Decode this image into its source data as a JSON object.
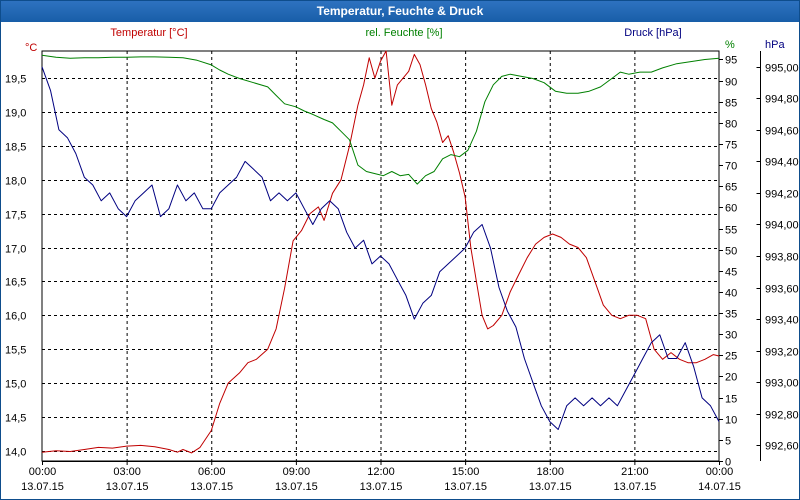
{
  "window": {
    "title": "Temperatur, Feuchte & Druck"
  },
  "chart_data": {
    "type": "line",
    "title": "Temperatur, Feuchte & Druck",
    "x_ticks": [
      {
        "time": "00:00",
        "date": "13.07.15"
      },
      {
        "time": "03:00",
        "date": "13.07.15"
      },
      {
        "time": "06:00",
        "date": "13.07.15"
      },
      {
        "time": "09:00",
        "date": "13.07.15"
      },
      {
        "time": "12:00",
        "date": "13.07.15"
      },
      {
        "time": "15:00",
        "date": "13.07.15"
      },
      {
        "time": "18:00",
        "date": "13.07.15"
      },
      {
        "time": "21:00",
        "date": "13.07.15"
      },
      {
        "time": "00:00",
        "date": "14.07.15"
      }
    ],
    "xlim_hours": [
      0,
      24
    ],
    "grid": true,
    "axes": {
      "temperature": {
        "unit": "°C",
        "range": [
          13.85,
          19.9
        ],
        "ticks": [
          "14,0",
          "14,5",
          "15,0",
          "15,5",
          "16,0",
          "16,5",
          "17,0",
          "17,5",
          "18,0",
          "18,5",
          "19,0",
          "19,5"
        ],
        "tick_values": [
          14,
          14.5,
          15,
          15.5,
          16,
          16.5,
          17,
          17.5,
          18,
          18.5,
          19,
          19.5
        ]
      },
      "humidity": {
        "unit": "%",
        "range": [
          0,
          97
        ],
        "ticks": [
          "0",
          "5",
          "10",
          "15",
          "20",
          "25",
          "30",
          "35",
          "40",
          "45",
          "50",
          "55",
          "60",
          "65",
          "70",
          "75",
          "80",
          "85",
          "90",
          "95"
        ],
        "tick_values": [
          0,
          5,
          10,
          15,
          20,
          25,
          30,
          35,
          40,
          45,
          50,
          55,
          60,
          65,
          70,
          75,
          80,
          85,
          90,
          95
        ]
      },
      "pressure": {
        "unit": "hPa",
        "range": [
          992.5,
          995.1
        ],
        "ticks": [
          "992,60",
          "992,80",
          "993,00",
          "993,20",
          "993,40",
          "993,60",
          "993,80",
          "994,00",
          "994,20",
          "994,40",
          "994,60",
          "994,80",
          "995,00"
        ],
        "tick_values": [
          992.6,
          992.8,
          993.0,
          993.2,
          993.4,
          993.6,
          993.8,
          994.0,
          994.2,
          994.4,
          994.6,
          994.8,
          995.0
        ]
      }
    },
    "legend": [
      "Temperatur [°C]",
      "rel. Feuchte [%]",
      "Druck [hPa]"
    ],
    "series": [
      {
        "name": "Temperatur [°C]",
        "axis": "temperature",
        "color": "#c00000",
        "points": [
          [
            0,
            13.98
          ],
          [
            0.5,
            14.0
          ],
          [
            1,
            13.99
          ],
          [
            1.5,
            14.02
          ],
          [
            2,
            14.05
          ],
          [
            2.5,
            14.04
          ],
          [
            3,
            14.07
          ],
          [
            3.5,
            14.08
          ],
          [
            4,
            14.06
          ],
          [
            4.5,
            14.02
          ],
          [
            4.8,
            13.98
          ],
          [
            5,
            14.02
          ],
          [
            5.3,
            13.97
          ],
          [
            5.6,
            14.05
          ],
          [
            6,
            14.3
          ],
          [
            6.3,
            14.7
          ],
          [
            6.6,
            15.0
          ],
          [
            7,
            15.15
          ],
          [
            7.3,
            15.3
          ],
          [
            7.6,
            15.35
          ],
          [
            8,
            15.5
          ],
          [
            8.3,
            15.8
          ],
          [
            8.6,
            16.4
          ],
          [
            8.9,
            17.1
          ],
          [
            9.2,
            17.25
          ],
          [
            9.5,
            17.5
          ],
          [
            9.8,
            17.6
          ],
          [
            10,
            17.4
          ],
          [
            10.3,
            17.8
          ],
          [
            10.6,
            18.0
          ],
          [
            10.9,
            18.5
          ],
          [
            11.2,
            19.1
          ],
          [
            11.4,
            19.4
          ],
          [
            11.6,
            19.8
          ],
          [
            11.8,
            19.5
          ],
          [
            12.0,
            19.75
          ],
          [
            12.2,
            19.9
          ],
          [
            12.4,
            19.1
          ],
          [
            12.6,
            19.4
          ],
          [
            12.8,
            19.5
          ],
          [
            13.0,
            19.6
          ],
          [
            13.2,
            19.85
          ],
          [
            13.4,
            19.7
          ],
          [
            13.6,
            19.4
          ],
          [
            13.8,
            19.05
          ],
          [
            14.0,
            18.85
          ],
          [
            14.2,
            18.55
          ],
          [
            14.4,
            18.65
          ],
          [
            14.6,
            18.4
          ],
          [
            14.8,
            18.1
          ],
          [
            15.0,
            17.75
          ],
          [
            15.2,
            17.0
          ],
          [
            15.4,
            16.5
          ],
          [
            15.6,
            16.0
          ],
          [
            15.8,
            15.8
          ],
          [
            16.0,
            15.85
          ],
          [
            16.3,
            16.0
          ],
          [
            16.6,
            16.35
          ],
          [
            16.9,
            16.6
          ],
          [
            17.2,
            16.85
          ],
          [
            17.5,
            17.05
          ],
          [
            17.8,
            17.15
          ],
          [
            18.1,
            17.2
          ],
          [
            18.4,
            17.15
          ],
          [
            18.7,
            17.05
          ],
          [
            19.0,
            17.0
          ],
          [
            19.3,
            16.85
          ],
          [
            19.6,
            16.5
          ],
          [
            19.9,
            16.15
          ],
          [
            20.2,
            16.0
          ],
          [
            20.5,
            15.95
          ],
          [
            20.8,
            16.0
          ],
          [
            21.1,
            16.0
          ],
          [
            21.4,
            15.95
          ],
          [
            21.7,
            15.5
          ],
          [
            22.0,
            15.35
          ],
          [
            22.3,
            15.45
          ],
          [
            22.6,
            15.35
          ],
          [
            22.9,
            15.3
          ],
          [
            23.2,
            15.3
          ],
          [
            23.5,
            15.35
          ],
          [
            23.8,
            15.42
          ],
          [
            24,
            15.4
          ]
        ]
      },
      {
        "name": "rel. Feuchte [%]",
        "axis": "humidity",
        "color": "#008000",
        "points": [
          [
            0,
            96
          ],
          [
            0.5,
            95.5
          ],
          [
            1,
            95.3
          ],
          [
            1.5,
            95.4
          ],
          [
            2,
            95.4
          ],
          [
            2.5,
            95.5
          ],
          [
            3,
            95.5
          ],
          [
            3.5,
            95.6
          ],
          [
            4,
            95.6
          ],
          [
            4.5,
            95.5
          ],
          [
            5,
            95.4
          ],
          [
            5.5,
            94.8
          ],
          [
            6,
            93.7
          ],
          [
            6.3,
            92.5
          ],
          [
            6.6,
            91.5
          ],
          [
            7,
            90.5
          ],
          [
            7.5,
            89.5
          ],
          [
            8,
            88.5
          ],
          [
            8.3,
            86.5
          ],
          [
            8.6,
            84.5
          ],
          [
            9,
            83.8
          ],
          [
            9.3,
            82.8
          ],
          [
            9.6,
            82.0
          ],
          [
            10,
            80.8
          ],
          [
            10.3,
            80.0
          ],
          [
            10.6,
            78.0
          ],
          [
            10.9,
            76.0
          ],
          [
            11.2,
            70.0
          ],
          [
            11.5,
            68.5
          ],
          [
            11.8,
            68.0
          ],
          [
            12.1,
            67.5
          ],
          [
            12.4,
            68.5
          ],
          [
            12.7,
            67.5
          ],
          [
            13.0,
            67.8
          ],
          [
            13.3,
            65.5
          ],
          [
            13.6,
            67.5
          ],
          [
            13.9,
            68.5
          ],
          [
            14.2,
            71.5
          ],
          [
            14.5,
            72.5
          ],
          [
            14.8,
            72.0
          ],
          [
            15.1,
            73.5
          ],
          [
            15.4,
            78.0
          ],
          [
            15.7,
            85.0
          ],
          [
            16.0,
            89.0
          ],
          [
            16.3,
            91.0
          ],
          [
            16.6,
            91.5
          ],
          [
            17.0,
            91.0
          ],
          [
            17.4,
            90.5
          ],
          [
            17.8,
            89.5
          ],
          [
            18.2,
            87.5
          ],
          [
            18.6,
            87.0
          ],
          [
            19.0,
            87.0
          ],
          [
            19.4,
            87.5
          ],
          [
            19.8,
            88.5
          ],
          [
            20.2,
            90.5
          ],
          [
            20.5,
            92.0
          ],
          [
            20.8,
            91.5
          ],
          [
            21.2,
            92.0
          ],
          [
            21.6,
            92.0
          ],
          [
            22.0,
            93.0
          ],
          [
            22.5,
            94.0
          ],
          [
            23.0,
            94.5
          ],
          [
            23.5,
            95.0
          ],
          [
            24,
            95.3
          ]
        ]
      },
      {
        "name": "Druck [hPa]",
        "axis": "pressure",
        "color": "#000080",
        "points": [
          [
            0,
            995.0
          ],
          [
            0.3,
            994.85
          ],
          [
            0.6,
            994.6
          ],
          [
            0.9,
            994.55
          ],
          [
            1.2,
            994.45
          ],
          [
            1.5,
            994.3
          ],
          [
            1.8,
            994.25
          ],
          [
            2.1,
            994.15
          ],
          [
            2.4,
            994.2
          ],
          [
            2.7,
            994.1
          ],
          [
            3.0,
            994.05
          ],
          [
            3.3,
            994.15
          ],
          [
            3.6,
            994.2
          ],
          [
            3.9,
            994.25
          ],
          [
            4.2,
            994.05
          ],
          [
            4.5,
            994.1
          ],
          [
            4.8,
            994.25
          ],
          [
            5.1,
            994.15
          ],
          [
            5.4,
            994.2
          ],
          [
            5.7,
            994.1
          ],
          [
            6.0,
            994.1
          ],
          [
            6.3,
            994.2
          ],
          [
            6.6,
            994.25
          ],
          [
            6.9,
            994.3
          ],
          [
            7.2,
            994.4
          ],
          [
            7.5,
            994.35
          ],
          [
            7.8,
            994.3
          ],
          [
            8.1,
            994.15
          ],
          [
            8.4,
            994.2
          ],
          [
            8.7,
            994.15
          ],
          [
            9.0,
            994.2
          ],
          [
            9.3,
            994.1
          ],
          [
            9.6,
            994.0
          ],
          [
            9.9,
            994.1
          ],
          [
            10.2,
            994.15
          ],
          [
            10.5,
            994.1
          ],
          [
            10.8,
            993.95
          ],
          [
            11.1,
            993.85
          ],
          [
            11.4,
            993.9
          ],
          [
            11.7,
            993.75
          ],
          [
            12.0,
            993.8
          ],
          [
            12.3,
            993.75
          ],
          [
            12.6,
            993.65
          ],
          [
            12.9,
            993.55
          ],
          [
            13.2,
            993.4
          ],
          [
            13.5,
            993.5
          ],
          [
            13.8,
            993.55
          ],
          [
            14.1,
            993.7
          ],
          [
            14.4,
            993.75
          ],
          [
            14.7,
            993.8
          ],
          [
            15.0,
            993.85
          ],
          [
            15.3,
            993.95
          ],
          [
            15.6,
            994.0
          ],
          [
            15.9,
            993.85
          ],
          [
            16.2,
            993.6
          ],
          [
            16.5,
            993.45
          ],
          [
            16.8,
            993.35
          ],
          [
            17.1,
            993.15
          ],
          [
            17.4,
            993.0
          ],
          [
            17.7,
            992.85
          ],
          [
            18.0,
            992.75
          ],
          [
            18.3,
            992.7
          ],
          [
            18.6,
            992.85
          ],
          [
            18.9,
            992.9
          ],
          [
            19.2,
            992.85
          ],
          [
            19.5,
            992.9
          ],
          [
            19.8,
            992.85
          ],
          [
            20.1,
            992.9
          ],
          [
            20.4,
            992.85
          ],
          [
            20.7,
            992.95
          ],
          [
            21.0,
            993.05
          ],
          [
            21.3,
            993.15
          ],
          [
            21.6,
            993.25
          ],
          [
            21.9,
            993.3
          ],
          [
            22.2,
            993.15
          ],
          [
            22.5,
            993.15
          ],
          [
            22.8,
            993.25
          ],
          [
            23.1,
            993.1
          ],
          [
            23.4,
            992.9
          ],
          [
            23.7,
            992.85
          ],
          [
            24,
            992.75
          ]
        ]
      }
    ]
  }
}
